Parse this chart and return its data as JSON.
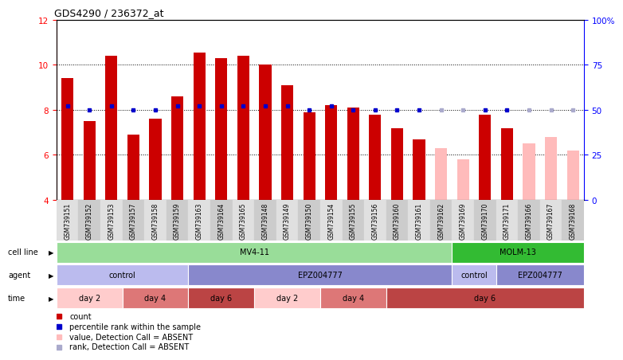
{
  "title": "GDS4290 / 236372_at",
  "samples": [
    "GSM739151",
    "GSM739152",
    "GSM739153",
    "GSM739157",
    "GSM739158",
    "GSM739159",
    "GSM739163",
    "GSM739164",
    "GSM739165",
    "GSM739148",
    "GSM739149",
    "GSM739150",
    "GSM739154",
    "GSM739155",
    "GSM739156",
    "GSM739160",
    "GSM739161",
    "GSM739162",
    "GSM739169",
    "GSM739170",
    "GSM739171",
    "GSM739166",
    "GSM739167",
    "GSM739168"
  ],
  "bar_values": [
    9.4,
    7.5,
    10.4,
    6.9,
    7.6,
    8.6,
    10.55,
    10.3,
    10.4,
    10.0,
    9.1,
    7.9,
    8.2,
    8.1,
    7.8,
    7.2,
    6.7,
    6.3,
    5.8,
    7.8,
    7.2,
    6.5,
    6.8,
    6.2
  ],
  "rank_percent": [
    52,
    50,
    52,
    50,
    50,
    52,
    52,
    52,
    52,
    52,
    52,
    50,
    52,
    50,
    50,
    50,
    50,
    50,
    50,
    50,
    50,
    50,
    50,
    50
  ],
  "absent_flags": [
    false,
    false,
    false,
    false,
    false,
    false,
    false,
    false,
    false,
    false,
    false,
    false,
    false,
    false,
    false,
    false,
    false,
    true,
    true,
    false,
    false,
    true,
    true,
    true
  ],
  "bar_color_present": "#cc0000",
  "bar_color_absent": "#ffbbbb",
  "rank_color_present": "#0000cc",
  "rank_color_absent": "#aaaacc",
  "ylim_left": [
    4,
    12
  ],
  "ylim_right": [
    0,
    100
  ],
  "yticks_left": [
    4,
    6,
    8,
    10,
    12
  ],
  "yticks_right": [
    0,
    25,
    50,
    75,
    100
  ],
  "ytick_right_labels": [
    "0",
    "25",
    "50",
    "75",
    "100%"
  ],
  "cell_line_groups": [
    {
      "label": "MV4-11",
      "start": 0,
      "end": 18,
      "color": "#99dd99"
    },
    {
      "label": "MOLM-13",
      "start": 18,
      "end": 24,
      "color": "#33bb33"
    }
  ],
  "agent_groups": [
    {
      "label": "control",
      "start": 0,
      "end": 6,
      "color": "#bbbbee"
    },
    {
      "label": "EPZ004777",
      "start": 6,
      "end": 18,
      "color": "#8888cc"
    },
    {
      "label": "control",
      "start": 18,
      "end": 20,
      "color": "#bbbbee"
    },
    {
      "label": "EPZ004777",
      "start": 20,
      "end": 24,
      "color": "#8888cc"
    }
  ],
  "time_groups": [
    {
      "label": "day 2",
      "start": 0,
      "end": 3,
      "color": "#ffcccc"
    },
    {
      "label": "day 4",
      "start": 3,
      "end": 6,
      "color": "#dd7777"
    },
    {
      "label": "day 6",
      "start": 6,
      "end": 9,
      "color": "#bb4444"
    },
    {
      "label": "day 2",
      "start": 9,
      "end": 12,
      "color": "#ffcccc"
    },
    {
      "label": "day 4",
      "start": 12,
      "end": 15,
      "color": "#dd7777"
    },
    {
      "label": "day 6",
      "start": 15,
      "end": 24,
      "color": "#bb4444"
    }
  ],
  "row_labels": [
    "cell line",
    "agent",
    "time"
  ],
  "legend_items": [
    {
      "color": "#cc0000",
      "label": "count"
    },
    {
      "color": "#0000cc",
      "label": "percentile rank within the sample"
    },
    {
      "color": "#ffbbbb",
      "label": "value, Detection Call = ABSENT"
    },
    {
      "color": "#aaaacc",
      "label": "rank, Detection Call = ABSENT"
    }
  ],
  "bg_color": "#ffffff",
  "col_bg_even": "#e0e0e0",
  "col_bg_odd": "#cccccc"
}
